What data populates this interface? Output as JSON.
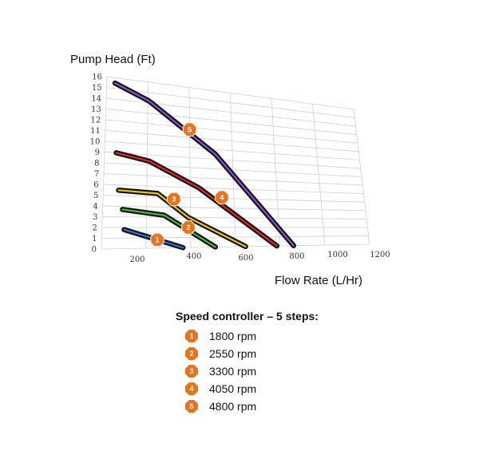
{
  "chart_data": {
    "type": "line",
    "title": "",
    "xlabel": "Flow Rate (L/Hr)",
    "ylabel": "Pump Head (Ft)",
    "xlim": [
      0,
      1200
    ],
    "ylim": [
      0,
      16
    ],
    "x_ticks": [
      "200",
      "400",
      "600",
      "800",
      "1000",
      "1200"
    ],
    "y_ticks": [
      "0",
      "1",
      "2",
      "3",
      "4",
      "5",
      "6",
      "7",
      "8",
      "9",
      "10",
      "11",
      "12",
      "13",
      "14",
      "15",
      "16"
    ],
    "grid": true,
    "series": [
      {
        "marker": "1",
        "color": "#2f6fd6",
        "points": [
          [
            100,
            1.8
          ],
          [
            365,
            0
          ]
        ]
      },
      {
        "marker": "2",
        "color": "#49b83a",
        "points": [
          [
            90,
            3.7
          ],
          [
            280,
            3.2
          ],
          [
            510,
            0
          ]
        ]
      },
      {
        "marker": "3",
        "color": "#f2c21a",
        "points": [
          [
            70,
            5.5
          ],
          [
            250,
            5.3
          ],
          [
            390,
            3.0
          ],
          [
            645,
            0
          ]
        ]
      },
      {
        "marker": "4",
        "color": "#e02828",
        "points": [
          [
            55,
            9.0
          ],
          [
            210,
            8.4
          ],
          [
            440,
            6.0
          ],
          [
            785,
            0
          ]
        ]
      },
      {
        "marker": "5",
        "color": "#8e4fd0",
        "points": [
          [
            40,
            15.5
          ],
          [
            205,
            14.2
          ],
          [
            520,
            9.5
          ],
          [
            860,
            0
          ]
        ]
      }
    ],
    "marker_positions": [
      {
        "label": "1",
        "x": 250,
        "y": 0.8
      },
      {
        "label": "2",
        "x": 390,
        "y": 2.0
      },
      {
        "label": "3",
        "x": 325,
        "y": 4.8
      },
      {
        "label": "4",
        "x": 545,
        "y": 5.1
      },
      {
        "label": "5",
        "x": 400,
        "y": 11.8
      }
    ]
  },
  "legend": {
    "title": "Speed controller – 5 steps:",
    "items": [
      {
        "num": "1",
        "label": "1800 rpm"
      },
      {
        "num": "2",
        "label": "2550 rpm"
      },
      {
        "num": "3",
        "label": "3300 rpm"
      },
      {
        "num": "4",
        "label": "4050 rpm"
      },
      {
        "num": "5",
        "label": "4800 rpm"
      }
    ]
  }
}
